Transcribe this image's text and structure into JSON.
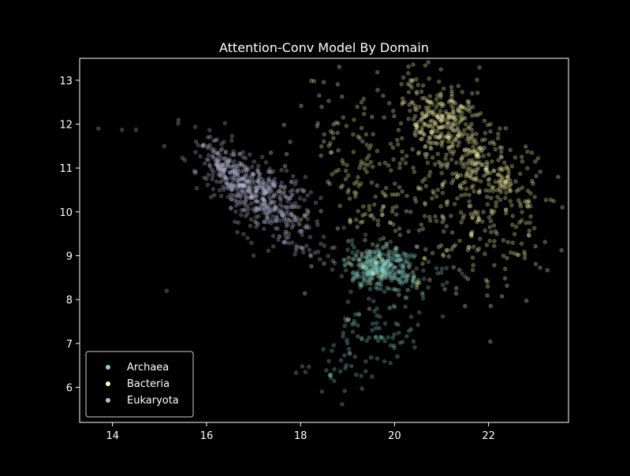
{
  "chart_data": {
    "type": "scatter",
    "title": "Attention-Conv Model By Domain",
    "xlabel": "",
    "ylabel": "",
    "xlim": [
      13.3,
      23.7
    ],
    "ylim": [
      5.2,
      13.5
    ],
    "xticks": [
      14,
      16,
      18,
      20,
      22
    ],
    "yticks": [
      6,
      7,
      8,
      9,
      10,
      11,
      12,
      13
    ],
    "grid": false,
    "legend_position": "lower-left",
    "background": "#000000",
    "series": [
      {
        "name": "Archaea",
        "color": "#8dd3c7",
        "clusters": [
          {
            "center": [
              19.7,
              8.7
            ],
            "spread": [
              0.35,
              0.25
            ],
            "count": 330
          },
          {
            "center": [
              19.6,
              7.3
            ],
            "spread": [
              0.45,
              0.35
            ],
            "count": 70
          },
          {
            "center": [
              18.8,
              6.3
            ],
            "spread": [
              0.35,
              0.35
            ],
            "count": 30
          },
          {
            "center": [
              20.8,
              8.3
            ],
            "spread": [
              0.45,
              0.35
            ],
            "count": 25
          }
        ]
      },
      {
        "name": "Bacteria",
        "color": "#ffffb3",
        "clusters": [
          {
            "center": [
              21.1,
              12.0
            ],
            "spread": [
              0.45,
              0.35
            ],
            "count": 320
          },
          {
            "center": [
              22.2,
              10.7
            ],
            "spread": [
              0.5,
              0.3
            ],
            "count": 150
          },
          {
            "center": [
              20.5,
              10.2
            ],
            "spread": [
              1.2,
              1.1
            ],
            "count": 300
          },
          {
            "center": [
              19.0,
              11.5
            ],
            "spread": [
              0.5,
              0.9
            ],
            "count": 70
          },
          {
            "center": [
              22.2,
              9.5
            ],
            "spread": [
              0.6,
              0.6
            ],
            "count": 60
          }
        ]
      },
      {
        "name": "Eukaryota",
        "color": "#bebada",
        "clusters": [
          {
            "center": [
              16.6,
              10.9
            ],
            "spread": [
              0.2,
              0.25
            ],
            "count": 220
          },
          {
            "center": [
              17.2,
              10.3
            ],
            "spread": [
              0.4,
              0.35
            ],
            "count": 300
          },
          {
            "center": [
              17.8,
              9.7
            ],
            "spread": [
              0.3,
              0.3
            ],
            "count": 60
          }
        ],
        "outliers": [
          [
            13.7,
            11.9
          ],
          [
            14.2,
            11.87
          ],
          [
            14.5,
            11.87
          ],
          [
            15.15,
            8.2
          ],
          [
            15.1,
            11.5
          ],
          [
            17.0,
            9.0
          ]
        ]
      }
    ]
  }
}
